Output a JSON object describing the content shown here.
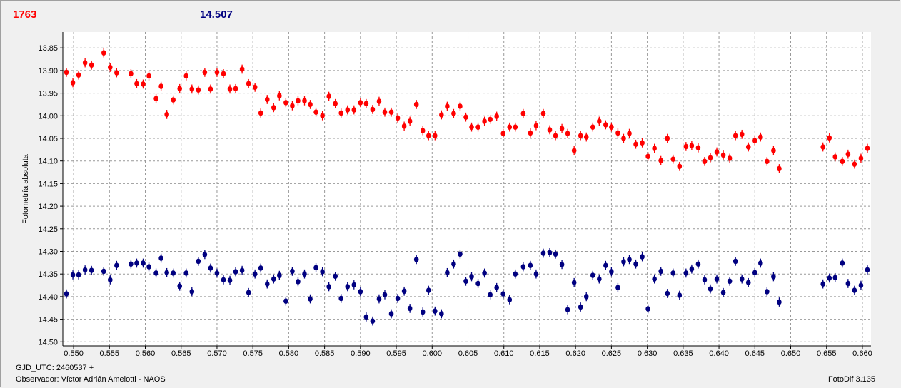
{
  "chart_data": {
    "type": "scatter",
    "y_label": "Fotometría absoluta",
    "footer_left_1": "GJD_UTC: 2460537 +",
    "footer_left_2": "Observador: Víctor Adrián Amelotti - NAOS",
    "footer_right": "FotoDif 3.135",
    "grid": true,
    "y_inverted": true,
    "xlim": [
      0.5485,
      0.6612
    ],
    "ylim": [
      13.815,
      14.509
    ],
    "xticks": [
      {
        "value": 0.55,
        "label": "0.550"
      },
      0.555,
      {
        "value": 0.56,
        "label": "0.560"
      },
      0.565,
      {
        "value": 0.57,
        "label": "0.570"
      },
      0.575,
      {
        "value": 0.58,
        "label": "0.580"
      },
      0.585,
      {
        "value": 0.59,
        "label": "0.590"
      },
      0.595,
      {
        "value": 0.6,
        "label": "0.600"
      },
      0.605,
      {
        "value": 0.61,
        "label": "0.610"
      },
      0.615,
      {
        "value": 0.62,
        "label": "0.620"
      },
      0.625,
      {
        "value": 0.63,
        "label": "0.630"
      },
      0.635,
      {
        "value": 0.64,
        "label": "0.640"
      },
      0.645,
      {
        "value": 0.65,
        "label": "0.650"
      },
      0.655,
      {
        "value": 0.66,
        "label": "0.660"
      }
    ],
    "yticks": [
      13.85,
      {
        "value": 13.9,
        "label": "13.90"
      },
      13.95,
      {
        "value": 14.0,
        "label": "14.00"
      },
      14.05,
      {
        "value": 14.1,
        "label": "14.10"
      },
      14.15,
      {
        "value": 14.2,
        "label": "14.20"
      },
      14.25,
      {
        "value": 14.3,
        "label": "14.30"
      },
      14.35,
      {
        "value": 14.4,
        "label": "14.40"
      },
      14.45,
      {
        "value": 14.5,
        "label": "14.50"
      }
    ],
    "x": [
      0.549,
      0.5499,
      0.5507,
      0.5516,
      0.5525,
      0.5542,
      0.5551,
      0.556,
      0.558,
      0.5588,
      0.5597,
      0.5605,
      0.5615,
      0.5622,
      0.563,
      0.5639,
      0.5648,
      0.5657,
      0.5665,
      0.5674,
      0.5683,
      0.5691,
      0.57,
      0.5709,
      0.5718,
      0.5726,
      0.5735,
      0.5744,
      0.5753,
      0.5761,
      0.577,
      0.5779,
      0.5787,
      0.5796,
      0.5805,
      0.5813,
      0.5822,
      0.583,
      0.5838,
      0.5847,
      0.5856,
      0.5865,
      0.5873,
      0.5882,
      0.5891,
      0.59,
      0.5908,
      0.5917,
      0.5926,
      0.5934,
      0.5943,
      0.5952,
      0.5961,
      0.5969,
      0.5978,
      0.5987,
      0.5995,
      0.6004,
      0.6013,
      0.6021,
      0.603,
      0.6039,
      0.6047,
      0.6055,
      0.6064,
      0.6073,
      0.6081,
      0.609,
      0.6099,
      0.6108,
      0.6116,
      0.6127,
      0.6137,
      0.6145,
      0.6155,
      0.6164,
      0.6172,
      0.6181,
      0.6189,
      0.6198,
      0.6207,
      0.6215,
      0.6224,
      0.6233,
      0.6242,
      0.625,
      0.6259,
      0.6267,
      0.6275,
      0.6284,
      0.6293,
      0.6301,
      0.631,
      0.6319,
      0.6328,
      0.6336,
      0.6345,
      0.6354,
      0.6362,
      0.6371,
      0.638,
      0.6388,
      0.6397,
      0.6406,
      0.6415,
      0.6423,
      0.6432,
      0.6441,
      0.645,
      0.6458,
      0.6467,
      0.6476,
      0.6484,
      0.6545,
      0.6554,
      0.6562,
      0.6572,
      0.658,
      0.6589,
      0.6598,
      0.6607
    ],
    "series": [
      {
        "name": "1763",
        "color": "#ff0000",
        "yerr": 0.01,
        "values": [
          13.904,
          13.927,
          13.91,
          13.883,
          13.888,
          13.861,
          13.893,
          13.905,
          13.907,
          13.929,
          13.93,
          13.912,
          13.962,
          13.935,
          13.997,
          13.965,
          13.94,
          13.912,
          13.941,
          13.943,
          13.904,
          13.941,
          13.904,
          13.907,
          13.941,
          13.94,
          13.897,
          13.929,
          13.937,
          13.994,
          13.964,
          13.982,
          13.956,
          13.971,
          13.978,
          13.967,
          13.967,
          13.975,
          13.992,
          14.0,
          13.957,
          13.973,
          13.994,
          13.987,
          13.987,
          13.971,
          13.973,
          13.986,
          13.968,
          13.992,
          13.992,
          14.005,
          14.023,
          14.012,
          13.975,
          14.033,
          14.044,
          14.044,
          13.998,
          13.979,
          13.995,
          13.979,
          14.003,
          14.025,
          14.025,
          14.012,
          14.008,
          14.001,
          14.039,
          14.025,
          14.025,
          13.995,
          14.038,
          14.022,
          13.995,
          14.031,
          14.044,
          14.028,
          14.039,
          14.077,
          14.044,
          14.047,
          14.025,
          14.012,
          14.02,
          14.025,
          14.038,
          14.05,
          14.039,
          14.063,
          14.06,
          14.09,
          14.072,
          14.099,
          14.05,
          14.096,
          14.112,
          14.068,
          14.066,
          14.071,
          14.101,
          14.093,
          14.08,
          14.087,
          14.094,
          14.044,
          14.041,
          14.069,
          14.055,
          14.047,
          14.101,
          14.077,
          14.117,
          14.069,
          14.049,
          14.091,
          14.101,
          14.085,
          14.107,
          14.094,
          14.072
        ]
      },
      {
        "name": "14.507",
        "color": "#000080",
        "yerr": 0.01,
        "values": [
          14.394,
          14.352,
          14.352,
          14.341,
          14.342,
          14.344,
          14.363,
          14.331,
          14.328,
          14.326,
          14.326,
          14.334,
          14.348,
          14.315,
          14.347,
          14.348,
          14.377,
          14.348,
          14.389,
          14.322,
          14.307,
          14.337,
          14.348,
          14.363,
          14.364,
          14.345,
          14.342,
          14.391,
          14.35,
          14.337,
          14.372,
          14.361,
          14.353,
          14.41,
          14.344,
          14.367,
          14.35,
          14.405,
          14.336,
          14.345,
          14.378,
          14.355,
          14.404,
          14.378,
          14.374,
          14.389,
          14.445,
          14.454,
          14.405,
          14.396,
          14.438,
          14.404,
          14.388,
          14.426,
          14.318,
          14.434,
          14.386,
          14.432,
          14.438,
          14.347,
          14.328,
          14.306,
          14.366,
          14.356,
          14.371,
          14.348,
          14.396,
          14.38,
          14.394,
          14.407,
          14.35,
          14.334,
          14.331,
          14.35,
          14.304,
          14.303,
          14.306,
          14.329,
          14.429,
          14.369,
          14.423,
          14.4,
          14.353,
          14.361,
          14.331,
          14.345,
          14.38,
          14.323,
          14.318,
          14.328,
          14.312,
          14.427,
          14.361,
          14.344,
          14.393,
          14.348,
          14.397,
          14.348,
          14.339,
          14.328,
          14.363,
          14.383,
          14.361,
          14.391,
          14.366,
          14.322,
          14.361,
          14.369,
          14.347,
          14.326,
          14.389,
          14.356,
          14.412,
          14.372,
          14.359,
          14.358,
          14.326,
          14.371,
          14.386,
          14.375,
          14.341
        ]
      }
    ]
  }
}
